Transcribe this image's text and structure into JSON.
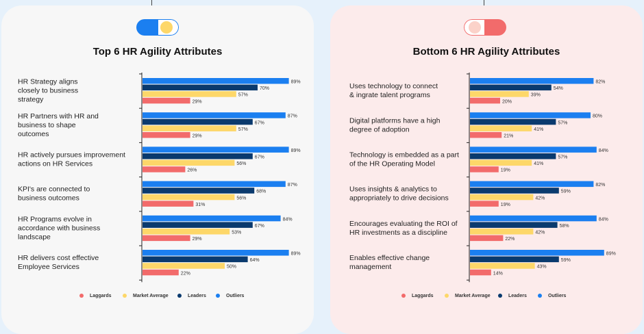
{
  "colors": {
    "laggards": "#f26b6b",
    "market_average": "#fdd769",
    "leaders": "#0a3a6e",
    "outliers": "#1b7ff0"
  },
  "legend": [
    "Laggards",
    "Market Average",
    "Leaders",
    "Outliers"
  ],
  "chart_data": [
    {
      "type": "bar",
      "orientation": "horizontal",
      "title": "Top 6 HR Agility Attributes",
      "categories": [
        [
          "HR Strategy aligns",
          "closely to business",
          "strategy"
        ],
        [
          "HR Partners with HR and",
          "business to shape",
          "outcomes"
        ],
        [
          "HR actively pursues improvement",
          "actions on HR Services"
        ],
        [
          "KPI's are connected to",
          "business outcomes"
        ],
        [
          "HR Programs evolve in",
          "accordance with business",
          "landscape"
        ],
        [
          "HR delivers cost effective",
          "Employee Services"
        ]
      ],
      "series": [
        {
          "name": "Outliers",
          "values": [
            89,
            87,
            89,
            87,
            84,
            89
          ]
        },
        {
          "name": "Leaders",
          "values": [
            70,
            67,
            67,
            68,
            67,
            64
          ]
        },
        {
          "name": "Market Average",
          "values": [
            57,
            57,
            56,
            56,
            53,
            50
          ]
        },
        {
          "name": "Laggards",
          "values": [
            29,
            29,
            26,
            31,
            29,
            22
          ]
        }
      ],
      "value_suffix": "%",
      "xlim": [
        0,
        100
      ]
    },
    {
      "type": "bar",
      "orientation": "horizontal",
      "title": "Bottom 6 HR Agility Attributes",
      "categories": [
        [
          "Uses technology to connect",
          "& ingrate talent programs"
        ],
        [
          "Digital platforms have a high",
          "degree of adoption"
        ],
        [
          "Technology is embedded as a part",
          "of the HR Operating Model"
        ],
        [
          "Uses insights & analytics to",
          "appropriately to drive decisions"
        ],
        [
          "Encourages evaluating the ROI of",
          "HR investments as a discipline"
        ],
        [
          "Enables effective change",
          "management"
        ]
      ],
      "series": [
        {
          "name": "Outliers",
          "values": [
            82,
            80,
            84,
            82,
            84,
            89
          ]
        },
        {
          "name": "Leaders",
          "values": [
            54,
            57,
            57,
            59,
            58,
            59
          ]
        },
        {
          "name": "Market Average",
          "values": [
            39,
            41,
            41,
            42,
            42,
            43
          ]
        },
        {
          "name": "Laggards",
          "values": [
            20,
            21,
            19,
            19,
            22,
            14
          ]
        }
      ],
      "value_suffix": "%",
      "xlim": [
        0,
        100
      ]
    }
  ]
}
